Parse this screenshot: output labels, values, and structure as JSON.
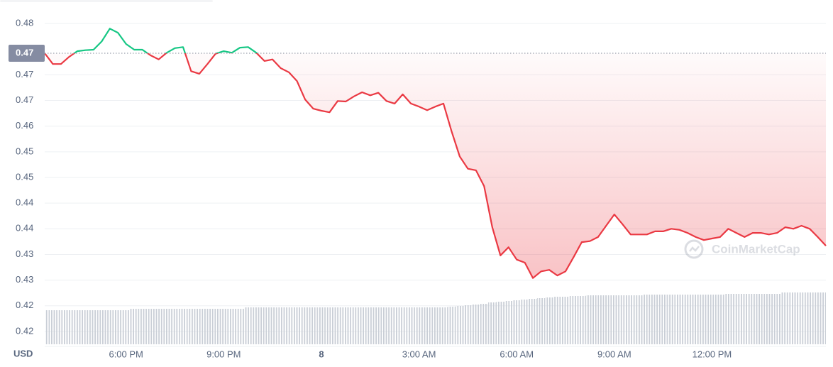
{
  "chart_data": {
    "type": "line",
    "ylabel": "USD",
    "watermark": "CoinMarketCap",
    "baseline": {
      "value": 0.4742,
      "label": "0.47"
    },
    "up_color": "#16c784",
    "down_color": "#ea3943",
    "volume_color": "#c3c8d0",
    "grid": true,
    "xlim": [
      -8.5,
      15.5
    ],
    "xticks": [
      {
        "value": -6,
        "label": "6:00 PM"
      },
      {
        "value": -3,
        "label": "9:00 PM"
      },
      {
        "value": 0,
        "label": "8"
      },
      {
        "value": 3,
        "label": "3:00 AM"
      },
      {
        "value": 6,
        "label": "6:00 AM"
      },
      {
        "value": 9,
        "label": "9:00 AM"
      },
      {
        "value": 12,
        "label": "12:00 PM"
      }
    ],
    "ylim": [
      0.4175,
      0.4825
    ],
    "yticks": [
      0.42,
      {
        "value": 0.425,
        "label": "0.42"
      },
      0.43,
      {
        "value": 0.435,
        "label": "0.43"
      },
      0.44,
      {
        "value": 0.445,
        "label": "0.44"
      },
      0.45,
      {
        "value": 0.455,
        "label": "0.45"
      },
      0.46,
      {
        "value": 0.465,
        "label": "0.47"
      },
      0.47,
      0.48
    ],
    "volume_ylim": [
      0,
      100
    ],
    "x": [
      -8.5,
      -8.25,
      -8,
      -7.75,
      -7.5,
      -7.25,
      -7,
      -6.75,
      -6.5,
      -6.25,
      -6,
      -5.75,
      -5.5,
      -5.25,
      -5,
      -4.75,
      -4.5,
      -4.25,
      -4,
      -3.75,
      -3.5,
      -3.25,
      -3,
      -2.75,
      -2.5,
      -2.25,
      -2,
      -1.75,
      -1.5,
      -1.25,
      -1,
      -0.75,
      -0.5,
      -0.25,
      0,
      0.25,
      0.5,
      0.75,
      1,
      1.25,
      1.5,
      1.75,
      2,
      2.25,
      2.5,
      2.75,
      3,
      3.25,
      3.5,
      3.75,
      4,
      4.25,
      4.5,
      4.75,
      5,
      5.25,
      5.5,
      5.75,
      6,
      6.25,
      6.5,
      6.75,
      7,
      7.25,
      7.5,
      7.75,
      8,
      8.25,
      8.5,
      8.75,
      9,
      9.25,
      9.5,
      9.75,
      10,
      10.25,
      10.5,
      10.75,
      11,
      11.25,
      11.5,
      11.75,
      12,
      12.25,
      12.5,
      12.75,
      13,
      13.25,
      13.5,
      13.75,
      14,
      14.25,
      14.5,
      14.75,
      15,
      15.25,
      15.5
    ],
    "values": [
      0.4742,
      0.4721,
      0.4721,
      0.4735,
      0.4746,
      0.4748,
      0.4749,
      0.4765,
      0.479,
      0.4782,
      0.476,
      0.4749,
      0.4749,
      0.4738,
      0.473,
      0.4743,
      0.4752,
      0.4754,
      0.4707,
      0.4702,
      0.4721,
      0.4741,
      0.4746,
      0.4743,
      0.4753,
      0.4754,
      0.4743,
      0.4727,
      0.473,
      0.4713,
      0.4705,
      0.4688,
      0.4652,
      0.4634,
      0.463,
      0.4627,
      0.4649,
      0.4648,
      0.4658,
      0.4666,
      0.466,
      0.4665,
      0.4649,
      0.4644,
      0.4662,
      0.4644,
      0.4638,
      0.4631,
      0.4638,
      0.4644,
      0.459,
      0.4541,
      0.4517,
      0.4514,
      0.4483,
      0.4403,
      0.4348,
      0.4364,
      0.434,
      0.4334,
      0.4304,
      0.4317,
      0.432,
      0.4309,
      0.4317,
      0.4345,
      0.4374,
      0.4376,
      0.4384,
      0.4406,
      0.4428,
      0.4409,
      0.4389,
      0.4389,
      0.4389,
      0.4395,
      0.4395,
      0.44,
      0.4398,
      0.4392,
      0.4384,
      0.4378,
      0.4381,
      0.4384,
      0.44,
      0.4392,
      0.4384,
      0.4392,
      0.4392,
      0.4389,
      0.4392,
      0.4403,
      0.44,
      0.4406,
      0.44,
      0.4384,
      0.4367
    ],
    "volume": [
      48,
      48,
      48,
      48,
      48,
      48,
      48,
      48,
      48,
      48,
      48,
      50,
      50,
      50,
      50,
      50,
      50,
      50,
      50,
      50,
      50,
      50,
      50,
      50,
      50,
      52,
      52,
      52,
      52,
      52,
      52,
      52,
      52,
      52,
      52,
      52,
      52,
      52,
      52,
      52,
      52,
      52,
      52,
      52,
      52,
      52,
      52,
      52,
      52,
      52,
      53,
      54,
      55,
      56,
      57,
      59,
      60,
      61,
      62,
      63,
      64,
      65,
      66,
      67,
      67,
      68,
      68,
      69,
      69,
      69,
      69,
      69,
      69,
      69,
      70,
      70,
      70,
      70,
      70,
      70,
      70,
      70,
      70,
      70,
      71,
      71,
      71,
      71,
      71,
      71,
      71,
      73,
      73,
      73,
      73,
      73,
      73
    ]
  }
}
